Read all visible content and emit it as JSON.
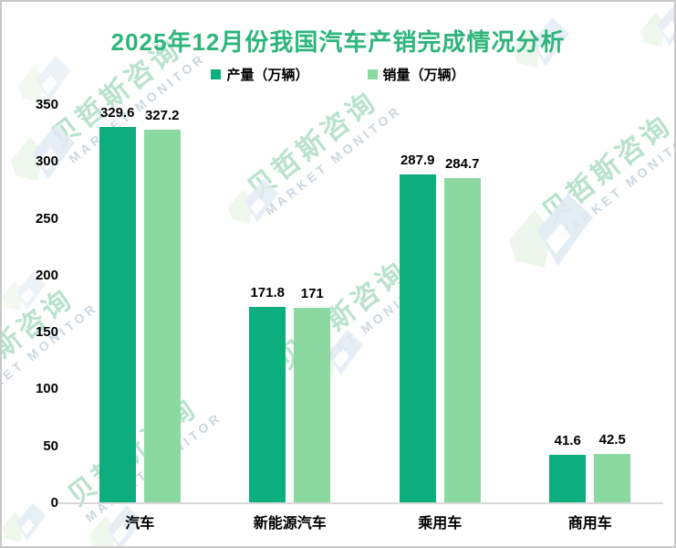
{
  "title": "2025年12月份我国汽车产销完成情况分析",
  "watermark": {
    "cn": "贝哲斯咨询",
    "en": "MARKET MONITOR"
  },
  "colors": {
    "title_green": "#2eb57c",
    "production_bar": "#0cae7d",
    "sales_bar": "#8bd9a1",
    "axis_line": "#d9d9d9",
    "frame_border": "#c8c8c8",
    "label_text": "#000000"
  },
  "chart_data": {
    "type": "bar",
    "title": "2025年12月份我国汽车产销完成情况分析",
    "categories": [
      "汽车",
      "新能源汽车",
      "乘用车",
      "商用车"
    ],
    "series": [
      {
        "name": "产量（万辆）",
        "color": "#0cae7d",
        "values": [
          329.6,
          171.8,
          287.9,
          41.6
        ]
      },
      {
        "name": "销量（万辆）",
        "color": "#8bd9a1",
        "values": [
          327.2,
          171,
          284.7,
          42.5
        ]
      }
    ],
    "xlabel": "",
    "ylabel": "",
    "ylim": [
      0,
      350
    ],
    "yticks": [
      0,
      50,
      100,
      150,
      200,
      250,
      300,
      350
    ],
    "grid": false,
    "legend_position": "top",
    "value_labels": true
  }
}
